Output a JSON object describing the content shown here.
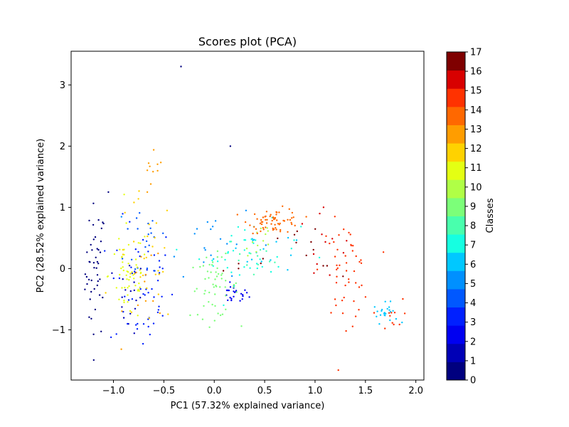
{
  "chart_data": {
    "type": "scatter",
    "title": "Scores plot (PCA)",
    "xlabel": "PC1 (57.32% explained variance)",
    "ylabel": "PC2 (28.52% explained variance)",
    "xlim": [
      -1.42,
      2.08
    ],
    "ylim": [
      -1.82,
      3.55
    ],
    "xticks": [
      -1.0,
      -0.5,
      0.0,
      0.5,
      1.0,
      1.5,
      2.0
    ],
    "xtick_labels": [
      "−1.0",
      "−0.5",
      "0.0",
      "0.5",
      "1.0",
      "1.5",
      "2.0"
    ],
    "yticks": [
      -1,
      0,
      1,
      2,
      3
    ],
    "ytick_labels": [
      "−1",
      "0",
      "1",
      "2",
      "3"
    ],
    "grid": false,
    "colorbar": {
      "label": "Classes",
      "min": 0,
      "max": 17,
      "ticks": [
        "0",
        "1",
        "2",
        "3",
        "4",
        "5",
        "6",
        "7",
        "8",
        "9",
        "10",
        "11",
        "12",
        "13",
        "14",
        "15",
        "16",
        "17"
      ],
      "colors": [
        "#00007f",
        "#0000b6",
        "#0000f1",
        "#0020ff",
        "#0058ff",
        "#0090ff",
        "#00c8ff",
        "#16ffe1",
        "#49ffad",
        "#7cff79",
        "#b0ff46",
        "#e4ff13",
        "#ffd200",
        "#ff9d00",
        "#ff6800",
        "#ff3200",
        "#d80000",
        "#7f0000"
      ]
    },
    "series": [
      {
        "class": 0,
        "clusters": [
          {
            "cx": -1.18,
            "cy": -0.05,
            "sx": 0.05,
            "sy": 0.55,
            "n": 45
          },
          {
            "cx": -0.33,
            "cy": 3.3,
            "sx": 0.0,
            "sy": 0.0,
            "n": 1
          },
          {
            "cx": 0.16,
            "cy": 2.0,
            "sx": 0.0,
            "sy": 0.0,
            "n": 1
          },
          {
            "cx": -1.05,
            "cy": 1.25,
            "sx": 0.0,
            "sy": 0.0,
            "n": 1
          }
        ]
      },
      {
        "class": 1,
        "clusters": [
          {
            "cx": -0.85,
            "cy": -0.45,
            "sx": 0.08,
            "sy": 0.3,
            "n": 18
          }
        ]
      },
      {
        "class": 2,
        "clusters": [
          {
            "cx": 0.2,
            "cy": -0.42,
            "sx": 0.07,
            "sy": 0.08,
            "n": 25
          }
        ]
      },
      {
        "class": 3,
        "clusters": [
          {
            "cx": -0.72,
            "cy": -0.3,
            "sx": 0.16,
            "sy": 0.55,
            "n": 55
          }
        ]
      },
      {
        "class": 4,
        "clusters": [
          {
            "cx": -0.65,
            "cy": 0.5,
            "sx": 0.12,
            "sy": 0.4,
            "n": 20
          }
        ]
      },
      {
        "class": 5,
        "clusters": [
          {
            "cx": -0.05,
            "cy": 0.5,
            "sx": 0.25,
            "sy": 0.3,
            "n": 20
          }
        ]
      },
      {
        "class": 6,
        "clusters": [
          {
            "cx": 1.7,
            "cy": -0.72,
            "sx": 0.06,
            "sy": 0.08,
            "n": 22
          },
          {
            "cx": 0.4,
            "cy": 0.3,
            "sx": 0.2,
            "sy": 0.2,
            "n": 15
          }
        ]
      },
      {
        "class": 7,
        "clusters": [
          {
            "cx": 0.35,
            "cy": 0.25,
            "sx": 0.25,
            "sy": 0.25,
            "n": 40
          }
        ]
      },
      {
        "class": 8,
        "clusters": [
          {
            "cx": 0.4,
            "cy": 0.15,
            "sx": 0.15,
            "sy": 0.2,
            "n": 12
          }
        ]
      },
      {
        "class": 9,
        "clusters": [
          {
            "cx": 0.0,
            "cy": -0.3,
            "sx": 0.12,
            "sy": 0.25,
            "n": 55
          }
        ]
      },
      {
        "class": 10,
        "clusters": [
          {
            "cx": 0.45,
            "cy": 0.45,
            "sx": 0.08,
            "sy": 0.2,
            "n": 12
          }
        ]
      },
      {
        "class": 11,
        "clusters": [
          {
            "cx": -0.85,
            "cy": -0.1,
            "sx": 0.1,
            "sy": 0.4,
            "n": 55
          }
        ]
      },
      {
        "class": 12,
        "clusters": [
          {
            "cx": -0.68,
            "cy": 0.1,
            "sx": 0.15,
            "sy": 0.55,
            "n": 30
          }
        ]
      },
      {
        "class": 13,
        "clusters": [
          {
            "cx": -0.62,
            "cy": 1.45,
            "sx": 0.06,
            "sy": 0.2,
            "n": 10
          },
          {
            "cx": -0.65,
            "cy": -0.3,
            "sx": 0.12,
            "sy": 0.4,
            "n": 12
          }
        ]
      },
      {
        "class": 14,
        "clusters": [
          {
            "cx": 0.6,
            "cy": 0.78,
            "sx": 0.13,
            "sy": 0.1,
            "n": 65
          }
        ]
      },
      {
        "class": 15,
        "clusters": [
          {
            "cx": 1.3,
            "cy": -0.05,
            "sx": 0.12,
            "sy": 0.4,
            "n": 50
          },
          {
            "cx": 1.75,
            "cy": -0.8,
            "sx": 0.06,
            "sy": 0.15,
            "n": 10
          }
        ]
      },
      {
        "class": 16,
        "clusters": [
          {
            "cx": 1.05,
            "cy": 0.35,
            "sx": 0.18,
            "sy": 0.4,
            "n": 12
          }
        ]
      },
      {
        "class": 17,
        "clusters": [
          {
            "cx": 0.9,
            "cy": 0.15,
            "sx": 0.2,
            "sy": 0.3,
            "n": 12
          },
          {
            "cx": 0.3,
            "cy": 0.0,
            "sx": 0.1,
            "sy": 0.1,
            "n": 4
          }
        ]
      }
    ]
  }
}
